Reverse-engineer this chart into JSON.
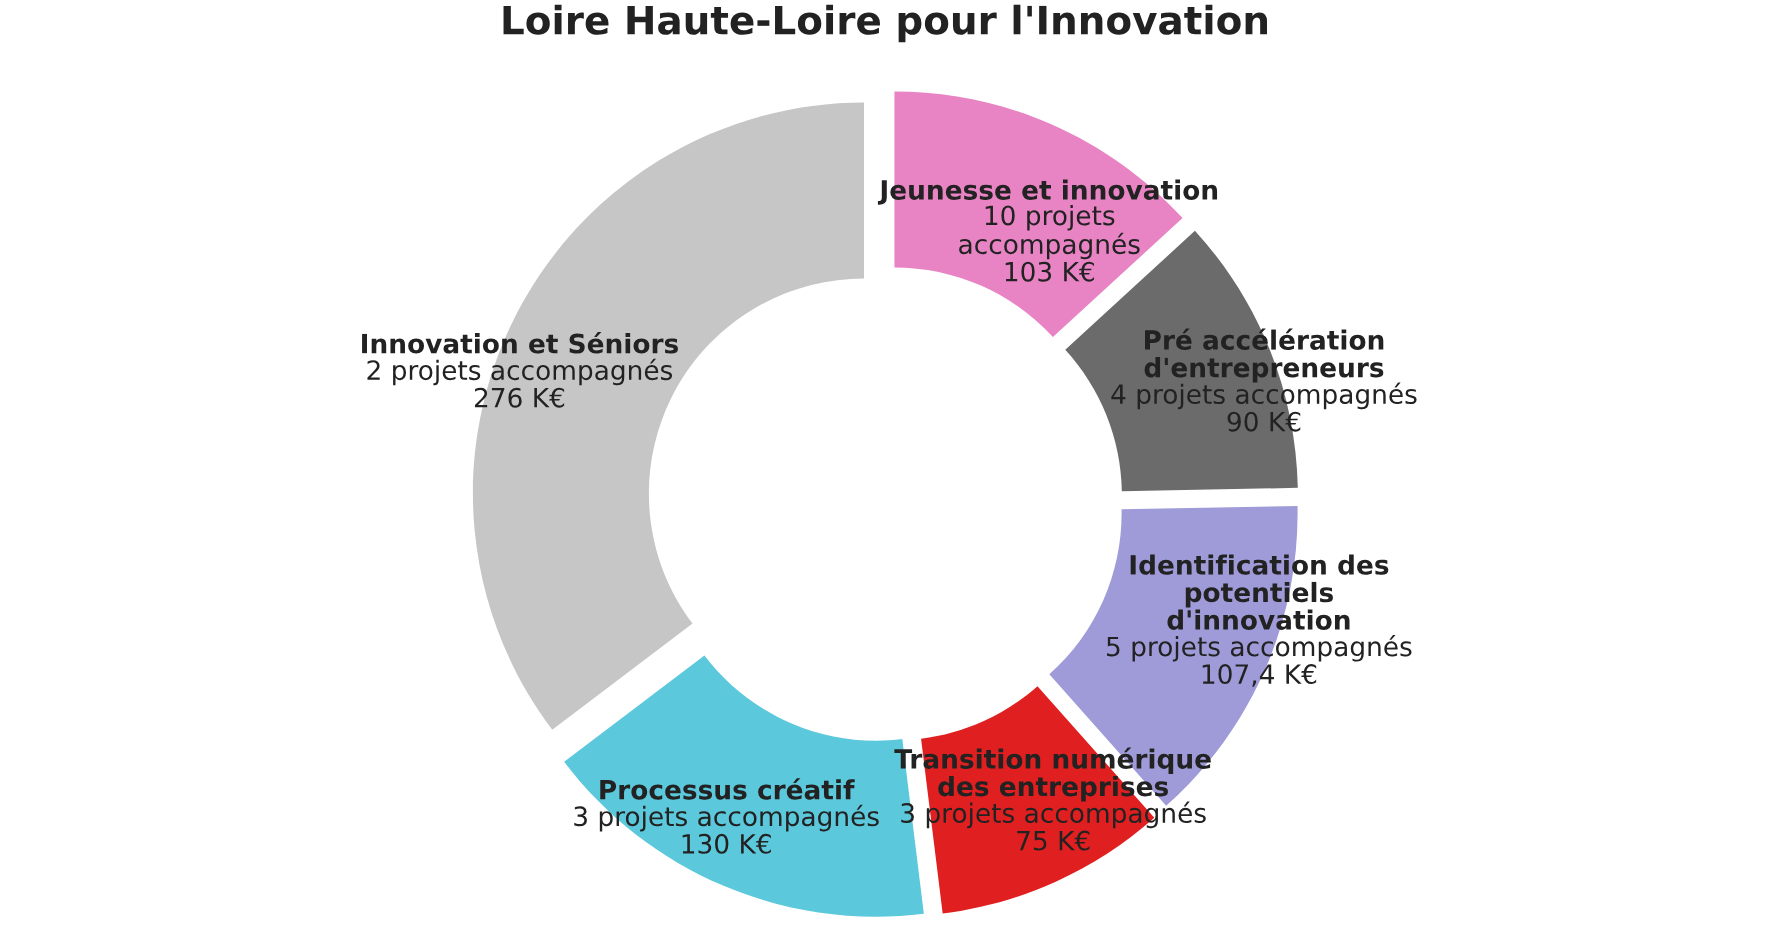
{
  "chart_data": {
    "type": "donut",
    "title": "Loire Haute-Loire pour l'Innovation",
    "categories": [
      "Jeunesse et innovation",
      "Pré accélération\nd'entrepreneurs",
      "Identification des\npotentiels\nd'innovation",
      "Transition numérique\ndes entreprises",
      "Processus créatif",
      "Innovation et Séniors"
    ],
    "values": [
      103,
      90,
      107.4,
      75,
      130,
      276
    ],
    "value_labels": [
      "10 projets\naccompagnés\n103 K€",
      "4 projets accompagnés\n90 K€",
      "5 projets accompagnés\n107,4 K€",
      "3 projets accompagnés\n75 K€",
      "3 projets accompagnés\n130 K€",
      "2 projets accompagnés\n276 K€"
    ],
    "colors": [
      "#e884c4",
      "#6b6b6b",
      "#9e9bd8",
      "#e02020",
      "#5cc8dc",
      "#c6c6c6"
    ],
    "legend": false
  }
}
